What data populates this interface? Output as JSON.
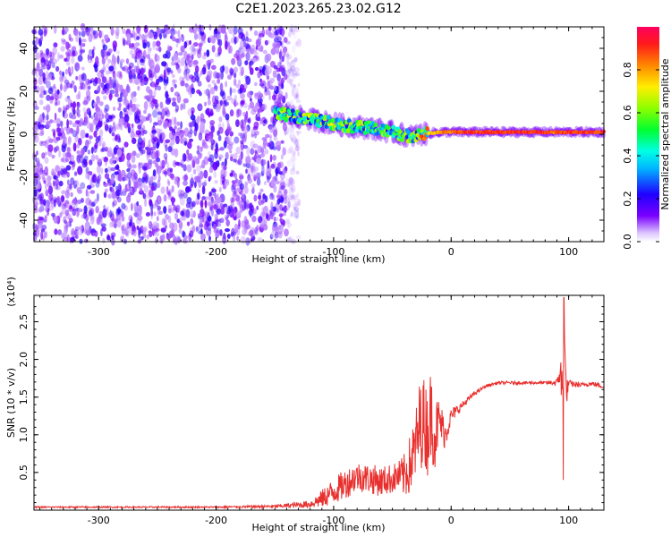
{
  "title": "C2E1.2023.265.23.02.G12",
  "colors": {
    "snr_line": "#e8302e",
    "axis": "#000000",
    "spec_low": "#7a00ff",
    "spec_high": "#ff0060"
  },
  "chart_data": [
    {
      "type": "heatmap",
      "xlabel": "Height of straight line (km)",
      "ylabel": "Frequency (Hz)",
      "xlim": [
        -355,
        130
      ],
      "ylim": [
        -50,
        50
      ],
      "x_ticks": [
        -300,
        -200,
        -100,
        0,
        100
      ],
      "y_ticks": [
        -40,
        -20,
        0,
        20,
        40
      ],
      "noise_region_x": [
        -355,
        -140
      ],
      "signal_track": {
        "x": [
          -150,
          -130,
          -110,
          -90,
          -70,
          -50,
          -35,
          -25,
          -10,
          0,
          20,
          40,
          60,
          80,
          90,
          100,
          110,
          120,
          130
        ],
        "freq_hz": [
          10,
          8,
          6,
          4,
          3,
          1,
          -1,
          0,
          1,
          1,
          1,
          1,
          1,
          1,
          1,
          1,
          1,
          1,
          1
        ],
        "amplitude": [
          0.45,
          0.5,
          0.5,
          0.5,
          0.45,
          0.45,
          0.45,
          0.7,
          0.8,
          0.85,
          0.9,
          0.9,
          0.9,
          0.9,
          0.85,
          0.9,
          0.9,
          0.9,
          0.9
        ]
      },
      "colorbar": {
        "label": "Normalized spectral amplitude",
        "range": [
          0.0,
          1.0
        ],
        "ticks": [
          0.0,
          0.2,
          0.4,
          0.6,
          0.8
        ]
      }
    },
    {
      "type": "line",
      "xlabel": "Height of straight line (km)",
      "ylabel": "SNR (10 * v/v)",
      "y_scale_note": "(x10⁴)",
      "xlim": [
        -355,
        130
      ],
      "ylim": [
        0,
        2.85
      ],
      "x_ticks": [
        -300,
        -200,
        -100,
        0,
        100
      ],
      "y_ticks": [
        0.5,
        1.0,
        1.5,
        2.0,
        2.5
      ],
      "series": [
        {
          "x": [
            -355,
            -300,
            -200,
            -150,
            -120,
            -110,
            -100,
            -90,
            -80,
            -70,
            -60,
            -50,
            -45,
            -40,
            -35,
            -30,
            -27,
            -24,
            -20,
            -17,
            -14,
            -10,
            -5,
            0,
            10,
            20,
            30,
            40,
            50,
            60,
            70,
            80,
            90,
            93,
            95,
            96,
            97,
            98,
            100,
            110,
            120,
            130
          ],
          "y": [
            0.04,
            0.04,
            0.04,
            0.05,
            0.08,
            0.15,
            0.25,
            0.35,
            0.45,
            0.42,
            0.38,
            0.42,
            0.45,
            0.45,
            0.6,
            0.85,
            1.1,
            1.2,
            1.05,
            1.3,
            1.0,
            1.2,
            1.0,
            1.25,
            1.4,
            1.55,
            1.65,
            1.69,
            1.69,
            1.69,
            1.69,
            1.69,
            1.69,
            1.85,
            1.4,
            2.8,
            1.9,
            1.55,
            1.68,
            1.66,
            1.68,
            1.64
          ],
          "noise_amplitude": [
            0.01,
            0.01,
            0.01,
            0.02,
            0.05,
            0.12,
            0.18,
            0.2,
            0.2,
            0.2,
            0.2,
            0.2,
            0.2,
            0.3,
            0.4,
            0.5,
            0.6,
            0.6,
            0.6,
            0.6,
            0.5,
            0.3,
            0.2,
            0.1,
            0.05,
            0.03,
            0.02,
            0.02,
            0.02,
            0.02,
            0.02,
            0.02,
            0.05,
            0.2,
            0.6,
            0.4,
            0.3,
            0.2,
            0.05,
            0.03,
            0.03,
            0.03
          ]
        }
      ]
    }
  ]
}
